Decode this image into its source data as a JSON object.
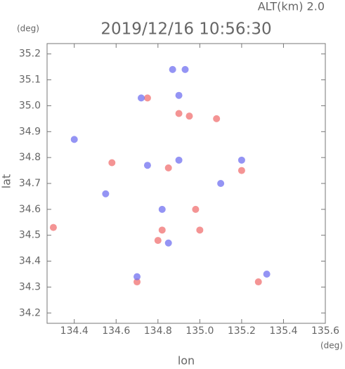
{
  "chart_data": {
    "type": "scatter",
    "header": "ALT(km) 2.0",
    "title": "2019/12/16 10:56:30",
    "y_unit": "(deg)",
    "x_unit": "(deg)",
    "x_label": "lon",
    "y_label": "lat",
    "xlim": [
      134.27,
      135.6
    ],
    "ylim": [
      34.16,
      35.24
    ],
    "xticks": [
      134.4,
      134.6,
      134.8,
      {
        "value": 135,
        "label": "135.0"
      },
      135.2,
      135.4,
      135.6
    ],
    "yticks": [
      34.2,
      34.3,
      34.4,
      34.5,
      34.6,
      34.7,
      34.8,
      34.9,
      {
        "value": 35,
        "label": "35.0"
      },
      35.1,
      35.2
    ],
    "series": [
      {
        "color": "#f07070",
        "x": [
          134.9,
          134.95,
          135.08,
          134.75,
          134.85,
          134.58,
          134.82,
          134.8,
          134.98,
          135.2,
          135.28,
          134.7,
          135.0,
          134.3
        ],
        "values": [
          34.97,
          34.96,
          34.95,
          35.03,
          34.76,
          34.78,
          34.52,
          34.48,
          34.6,
          34.75,
          34.32,
          34.32,
          34.52,
          34.53
        ]
      },
      {
        "color": "#7070f0",
        "x": [
          134.87,
          134.93,
          134.72,
          134.9,
          134.4,
          134.75,
          134.9,
          135.2,
          134.82,
          135.32,
          134.55,
          134.85,
          134.7,
          135.1
        ],
        "values": [
          35.14,
          35.14,
          35.03,
          35.04,
          34.87,
          34.77,
          34.79,
          34.79,
          34.6,
          34.35,
          34.66,
          34.47,
          34.34,
          34.7
        ]
      }
    ]
  }
}
